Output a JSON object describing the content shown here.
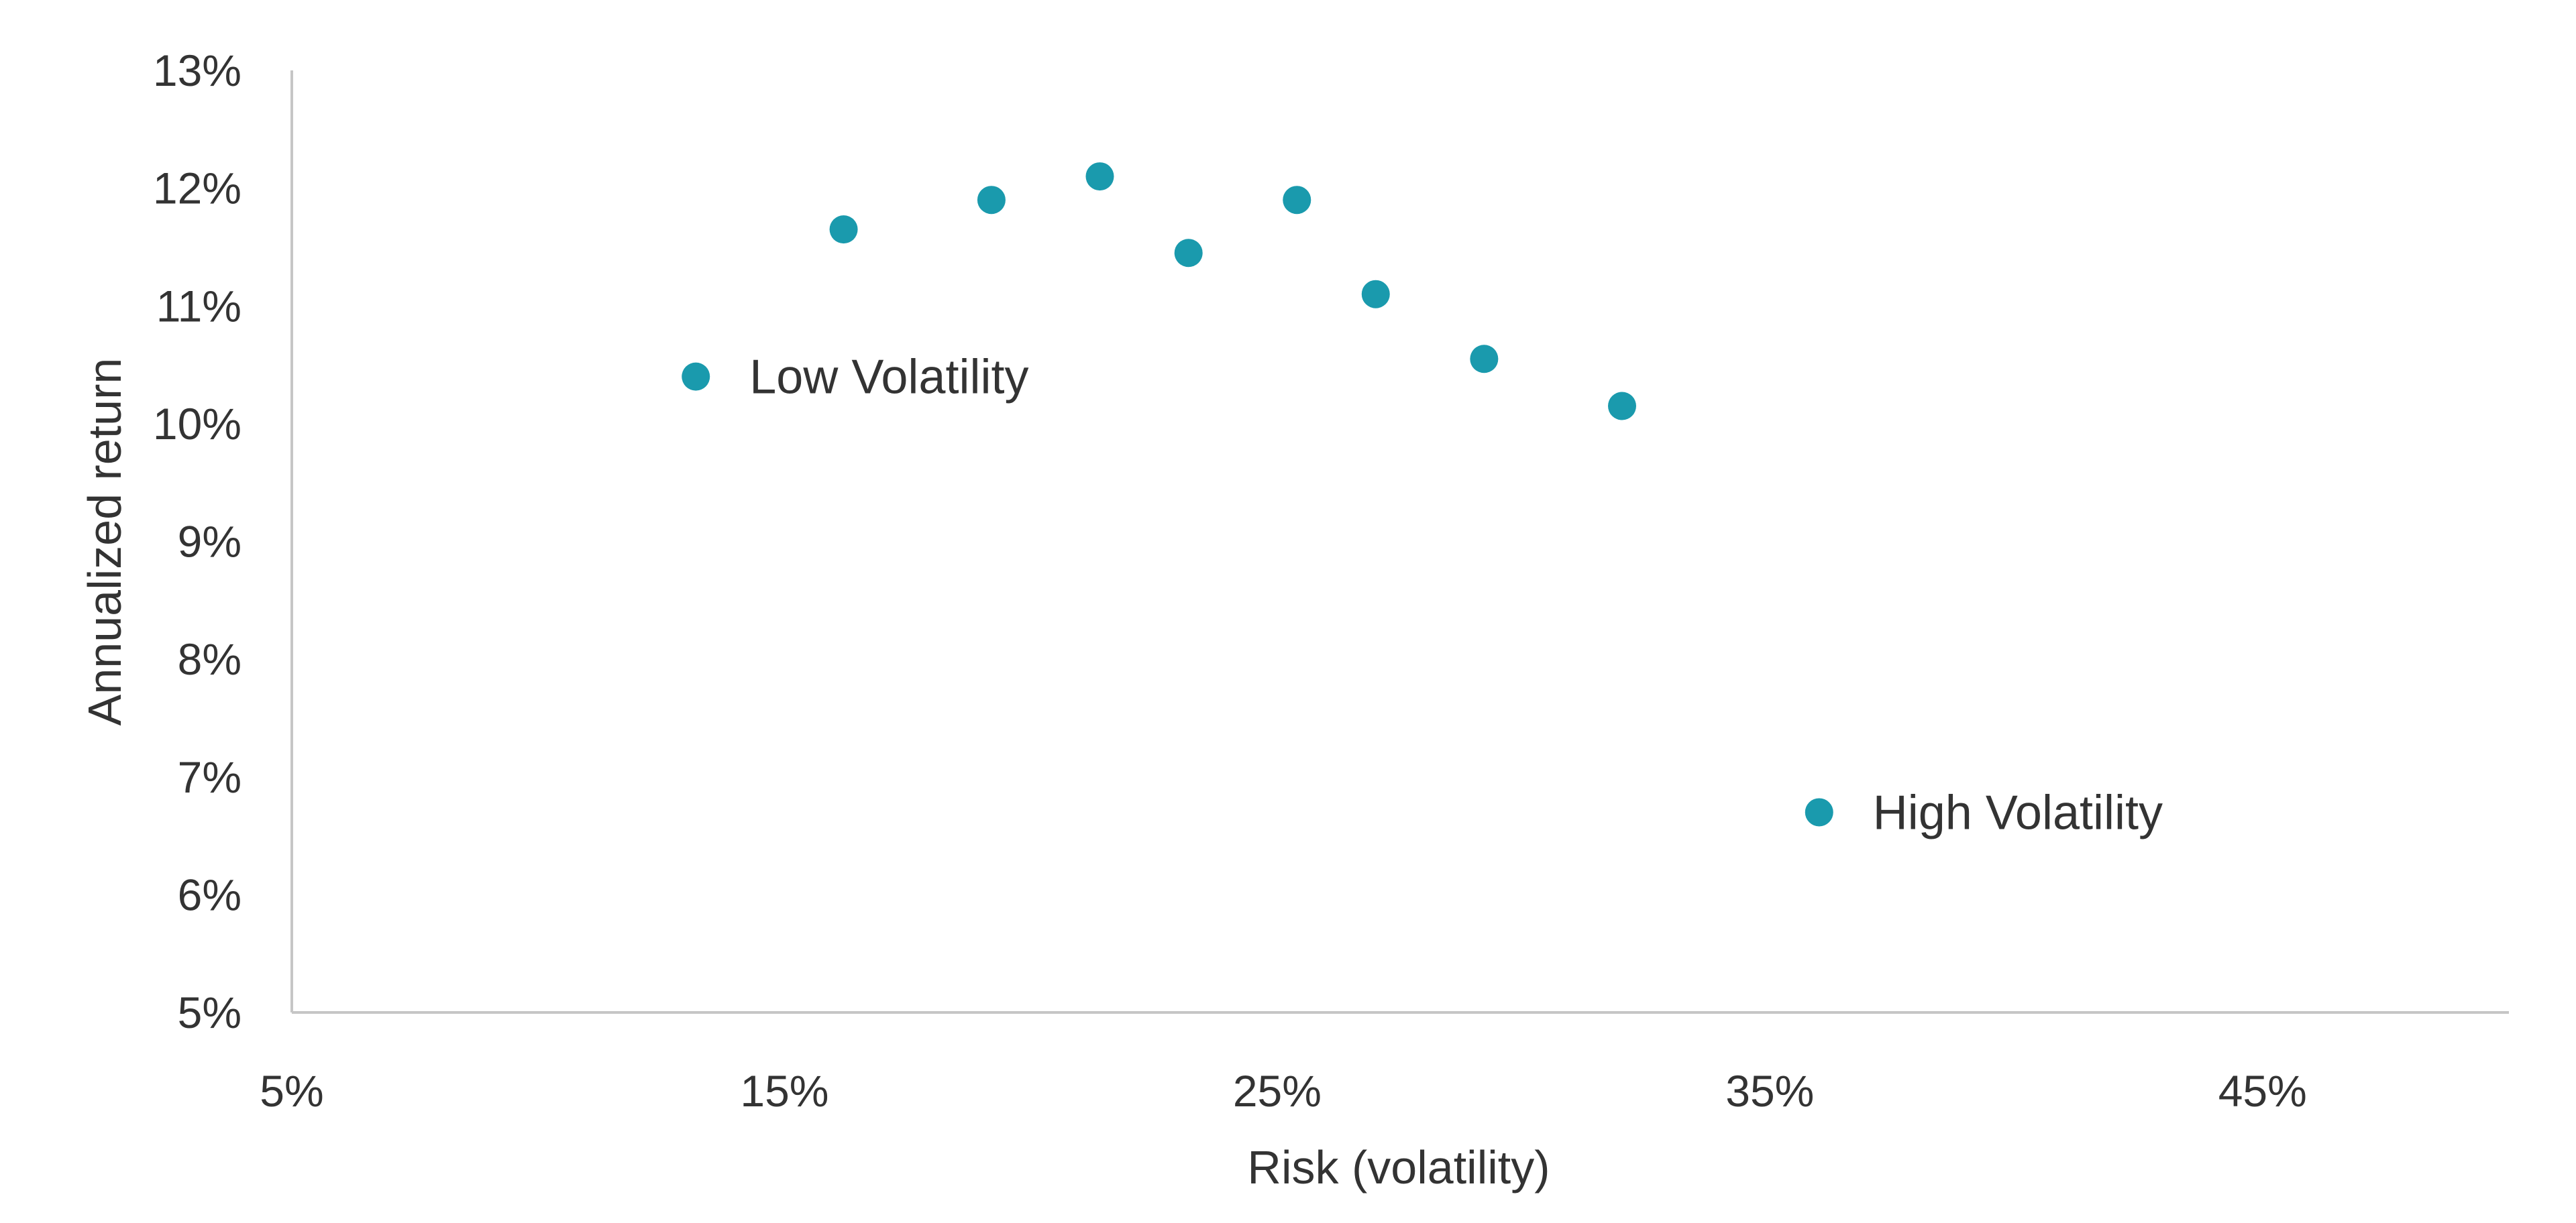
{
  "chart_data": {
    "type": "scatter",
    "title": "",
    "xlabel": "Risk (volatility)",
    "ylabel": "Annualized return",
    "xlim": [
      5,
      50
    ],
    "ylim": [
      5,
      13
    ],
    "x_ticks": [
      5,
      15,
      25,
      35,
      45
    ],
    "x_tick_labels": [
      "5%",
      "15%",
      "25%",
      "35%",
      "45%"
    ],
    "y_ticks": [
      13,
      12,
      11,
      10,
      9,
      8,
      7,
      6,
      5
    ],
    "y_tick_labels": [
      "13%",
      "12%",
      "11%",
      "10%",
      "9%",
      "8%",
      "7%",
      "6%",
      "5%"
    ],
    "grid": false,
    "legend": "none",
    "marker_color": "#1a9aad",
    "series": [
      {
        "points": [
          {
            "x": 13.2,
            "y": 10.4,
            "label": "Low Volatility"
          },
          {
            "x": 16.2,
            "y": 11.65,
            "label": ""
          },
          {
            "x": 19.2,
            "y": 11.9,
            "label": ""
          },
          {
            "x": 21.4,
            "y": 12.1,
            "label": ""
          },
          {
            "x": 23.2,
            "y": 11.45,
            "label": ""
          },
          {
            "x": 25.4,
            "y": 11.9,
            "label": ""
          },
          {
            "x": 27.0,
            "y": 11.1,
            "label": ""
          },
          {
            "x": 29.2,
            "y": 10.55,
            "label": ""
          },
          {
            "x": 32.0,
            "y": 10.15,
            "label": ""
          },
          {
            "x": 36.0,
            "y": 6.7,
            "label": "High Volatility"
          }
        ]
      }
    ]
  }
}
